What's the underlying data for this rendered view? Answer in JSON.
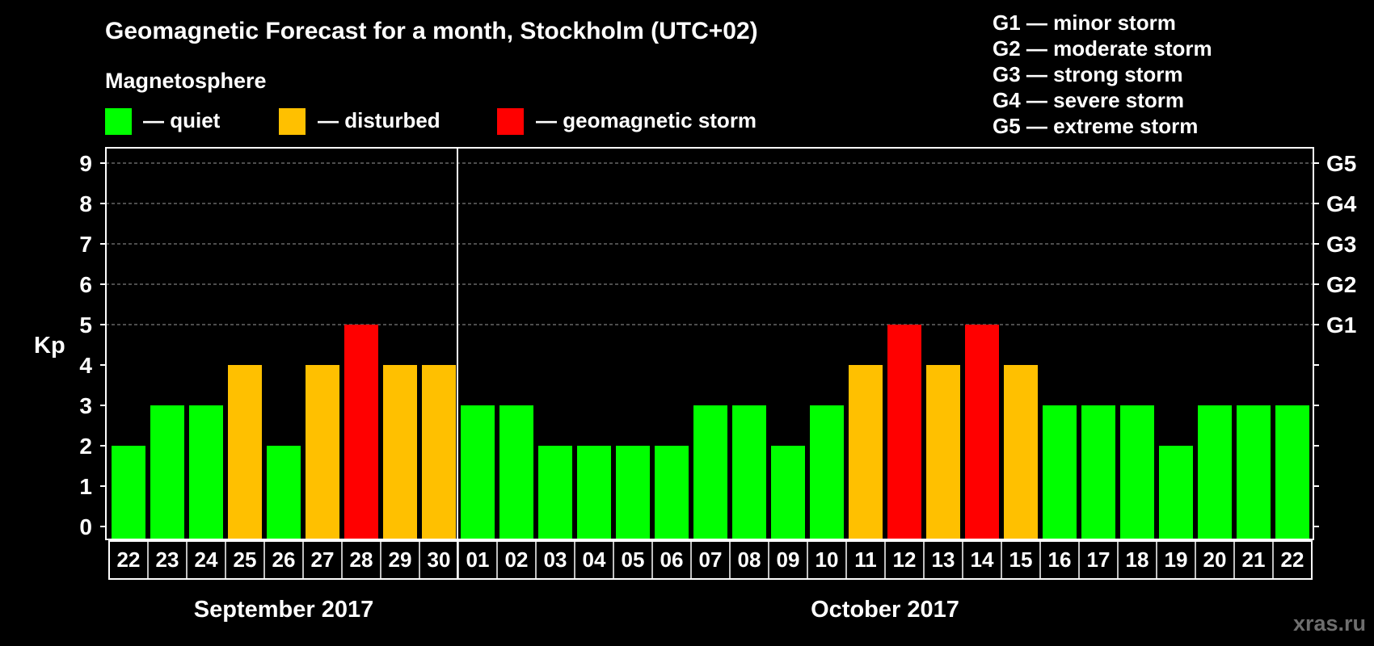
{
  "chart_data": {
    "type": "bar",
    "title": "Geomagnetic Forecast for a month, Stockholm (UTC+02)",
    "subtitle": "Magnetosphere",
    "ylabel": "Kp",
    "ylim": [
      0,
      9
    ],
    "y_ticks": [
      "0",
      "1",
      "2",
      "3",
      "4",
      "5",
      "6",
      "7",
      "8",
      "9"
    ],
    "right_ticks": [
      {
        "kp": 5,
        "label": "G1"
      },
      {
        "kp": 6,
        "label": "G2"
      },
      {
        "kp": 7,
        "label": "G3"
      },
      {
        "kp": 8,
        "label": "G4"
      },
      {
        "kp": 9,
        "label": "G5"
      }
    ],
    "grid": "dashed horizontal at Kp 5-9",
    "legend": [
      {
        "label": "— quiet",
        "color": "#00ff00"
      },
      {
        "label": "— disturbed",
        "color": "#ffc000"
      },
      {
        "label": "— geomagnetic storm",
        "color": "#ff0000"
      }
    ],
    "storm_levels": [
      "G1 — minor storm",
      "G2 — moderate storm",
      "G3 — strong storm",
      "G4 — severe storm",
      "G5 — extreme storm"
    ],
    "categories": [
      "22",
      "23",
      "24",
      "25",
      "26",
      "27",
      "28",
      "29",
      "30",
      "01",
      "02",
      "03",
      "04",
      "05",
      "06",
      "07",
      "08",
      "09",
      "10",
      "11",
      "12",
      "13",
      "14",
      "15",
      "16",
      "17",
      "18",
      "19",
      "20",
      "21",
      "22"
    ],
    "values": [
      2,
      3,
      3,
      4,
      2,
      4,
      5,
      4,
      4,
      3,
      3,
      2,
      2,
      2,
      2,
      3,
      3,
      2,
      3,
      4,
      5,
      4,
      5,
      4,
      3,
      3,
      3,
      2,
      3,
      3,
      3
    ],
    "months": [
      {
        "label": "September 2017",
        "count": 9
      },
      {
        "label": "October 2017",
        "count": 22
      }
    ],
    "colors": {
      "quiet": "#00ff00",
      "disturbed": "#ffc000",
      "storm": "#ff0000"
    }
  },
  "watermark": "xras.ru"
}
